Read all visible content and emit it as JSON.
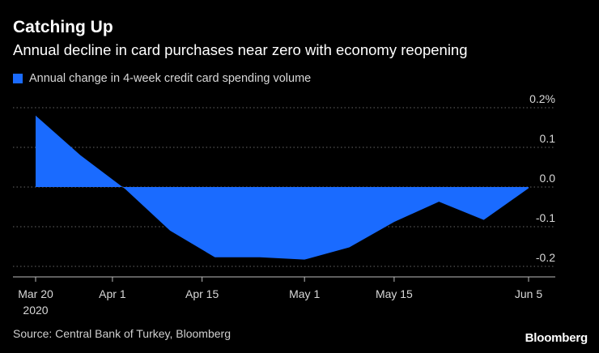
{
  "header": {
    "title": "Catching Up",
    "subtitle": "Annual decline in card purchases near zero with economy reopening"
  },
  "footer": {
    "source": "Source: Central Bank of Turkey, Bloomberg",
    "brand": "Bloomberg"
  },
  "chart_data": {
    "type": "area",
    "title": "Catching Up",
    "subtitle": "Annual decline in card purchases near zero with economy reopening",
    "legend": [
      {
        "name": "Annual change in 4-week credit card spending volume",
        "color": "#1a6bff"
      }
    ],
    "legend_position": "top-left",
    "x_ticks": [
      {
        "day": 0,
        "label": "Mar 20",
        "sublabel": "2020"
      },
      {
        "day": 12,
        "label": "Apr 1"
      },
      {
        "day": 26,
        "label": "Apr 15"
      },
      {
        "day": 42,
        "label": "May 1"
      },
      {
        "day": 56,
        "label": "May 15"
      },
      {
        "day": 77,
        "label": "Jun 5"
      }
    ],
    "x_range": [
      0,
      77
    ],
    "y_ticks": [
      {
        "value": 0.2,
        "label": "0.2%"
      },
      {
        "value": 0.1,
        "label": "0.1"
      },
      {
        "value": 0.0,
        "label": "0.0"
      },
      {
        "value": -0.1,
        "label": "-0.1"
      },
      {
        "value": -0.2,
        "label": "-0.2"
      }
    ],
    "ylim": [
      -0.2,
      0.2
    ],
    "grid": true,
    "series": [
      {
        "name": "Annual change in 4-week credit card spending volume",
        "x": [
          0,
          7,
          14,
          21,
          28,
          35,
          42,
          49,
          56,
          63,
          70,
          77
        ],
        "values": [
          0.18,
          0.08,
          -0.005,
          -0.11,
          -0.177,
          -0.177,
          -0.183,
          -0.152,
          -0.088,
          -0.037,
          -0.083,
          -0.003
        ]
      }
    ]
  },
  "colors": {
    "area": "#1a6bff",
    "grid": "#666666",
    "axis": "#bbbbbb",
    "background": "#000000"
  }
}
